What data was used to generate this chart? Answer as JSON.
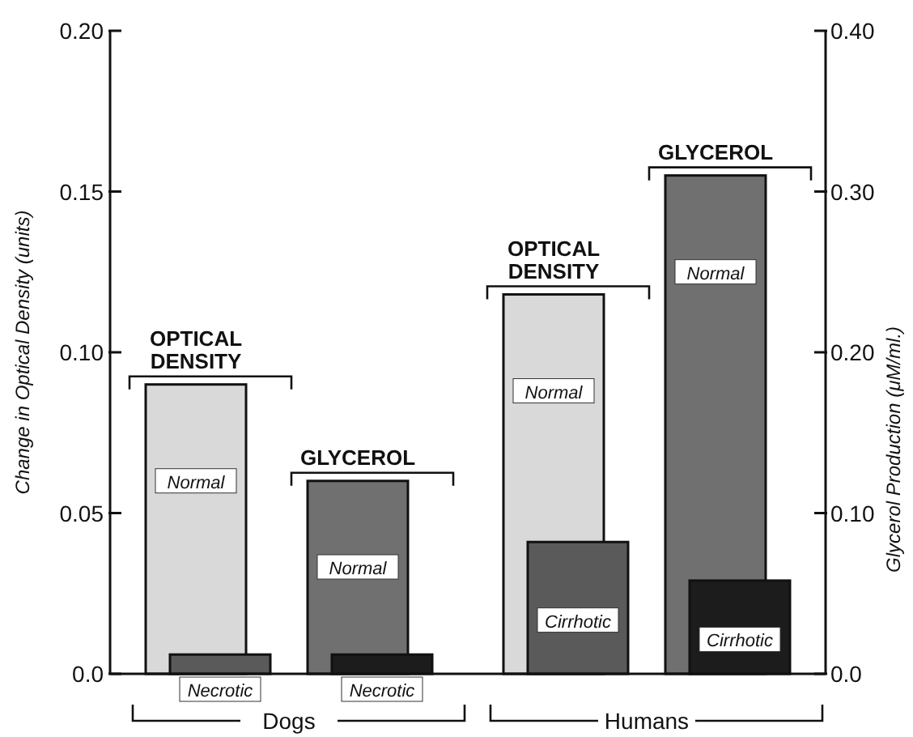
{
  "chart_data": {
    "type": "bar",
    "categories": [
      "Dogs",
      "Humans"
    ],
    "series": [
      {
        "type": "bar",
        "axis": "y",
        "color": "#d9d9d9",
        "values": [
          0.09,
          0.118
        ],
        "value_labels": [
          "Normal",
          "Normal"
        ]
      },
      {
        "type": "bar",
        "axis": "y",
        "color": "#5a5a5a",
        "values": [
          0.006,
          0.041
        ],
        "value_labels": [
          "Necrotic",
          "Cirrhotic"
        ]
      },
      {
        "type": "bar",
        "axis": "y2",
        "color": "#707070",
        "values": [
          0.12,
          0.31
        ],
        "value_labels": [
          "Normal",
          "Normal"
        ]
      },
      {
        "type": "bar",
        "axis": "y2",
        "color": "#1c1c1c",
        "values": [
          0.012,
          0.058
        ],
        "value_labels": [
          "Necrotic",
          "Cirrhotic"
        ]
      }
    ],
    "ylabel": "Change in Optical Density (units)",
    "y2label": "Glycerol Production (μM/ml.)",
    "ylim": [
      0,
      0.2
    ],
    "yticks": [
      {
        "value": 0,
        "label": "0.0"
      },
      0.05,
      {
        "value": 0.1,
        "label": "0.10"
      },
      0.15,
      {
        "value": 0.2,
        "label": "0.20"
      }
    ],
    "y2lim": [
      0,
      0.4
    ],
    "y2ticks": [
      {
        "value": 0,
        "label": "0.0"
      },
      {
        "value": 0.1,
        "label": "0.10"
      },
      {
        "value": 0.2,
        "label": "0.20"
      },
      {
        "value": 0.3,
        "label": "0.30"
      },
      {
        "value": 0.4,
        "label": "0.40"
      }
    ],
    "annotations": [
      "OPTICAL DENSITY",
      "GLYCEROL",
      "OPTICAL DENSITY",
      "GLYCEROL"
    ],
    "grid": false
  }
}
